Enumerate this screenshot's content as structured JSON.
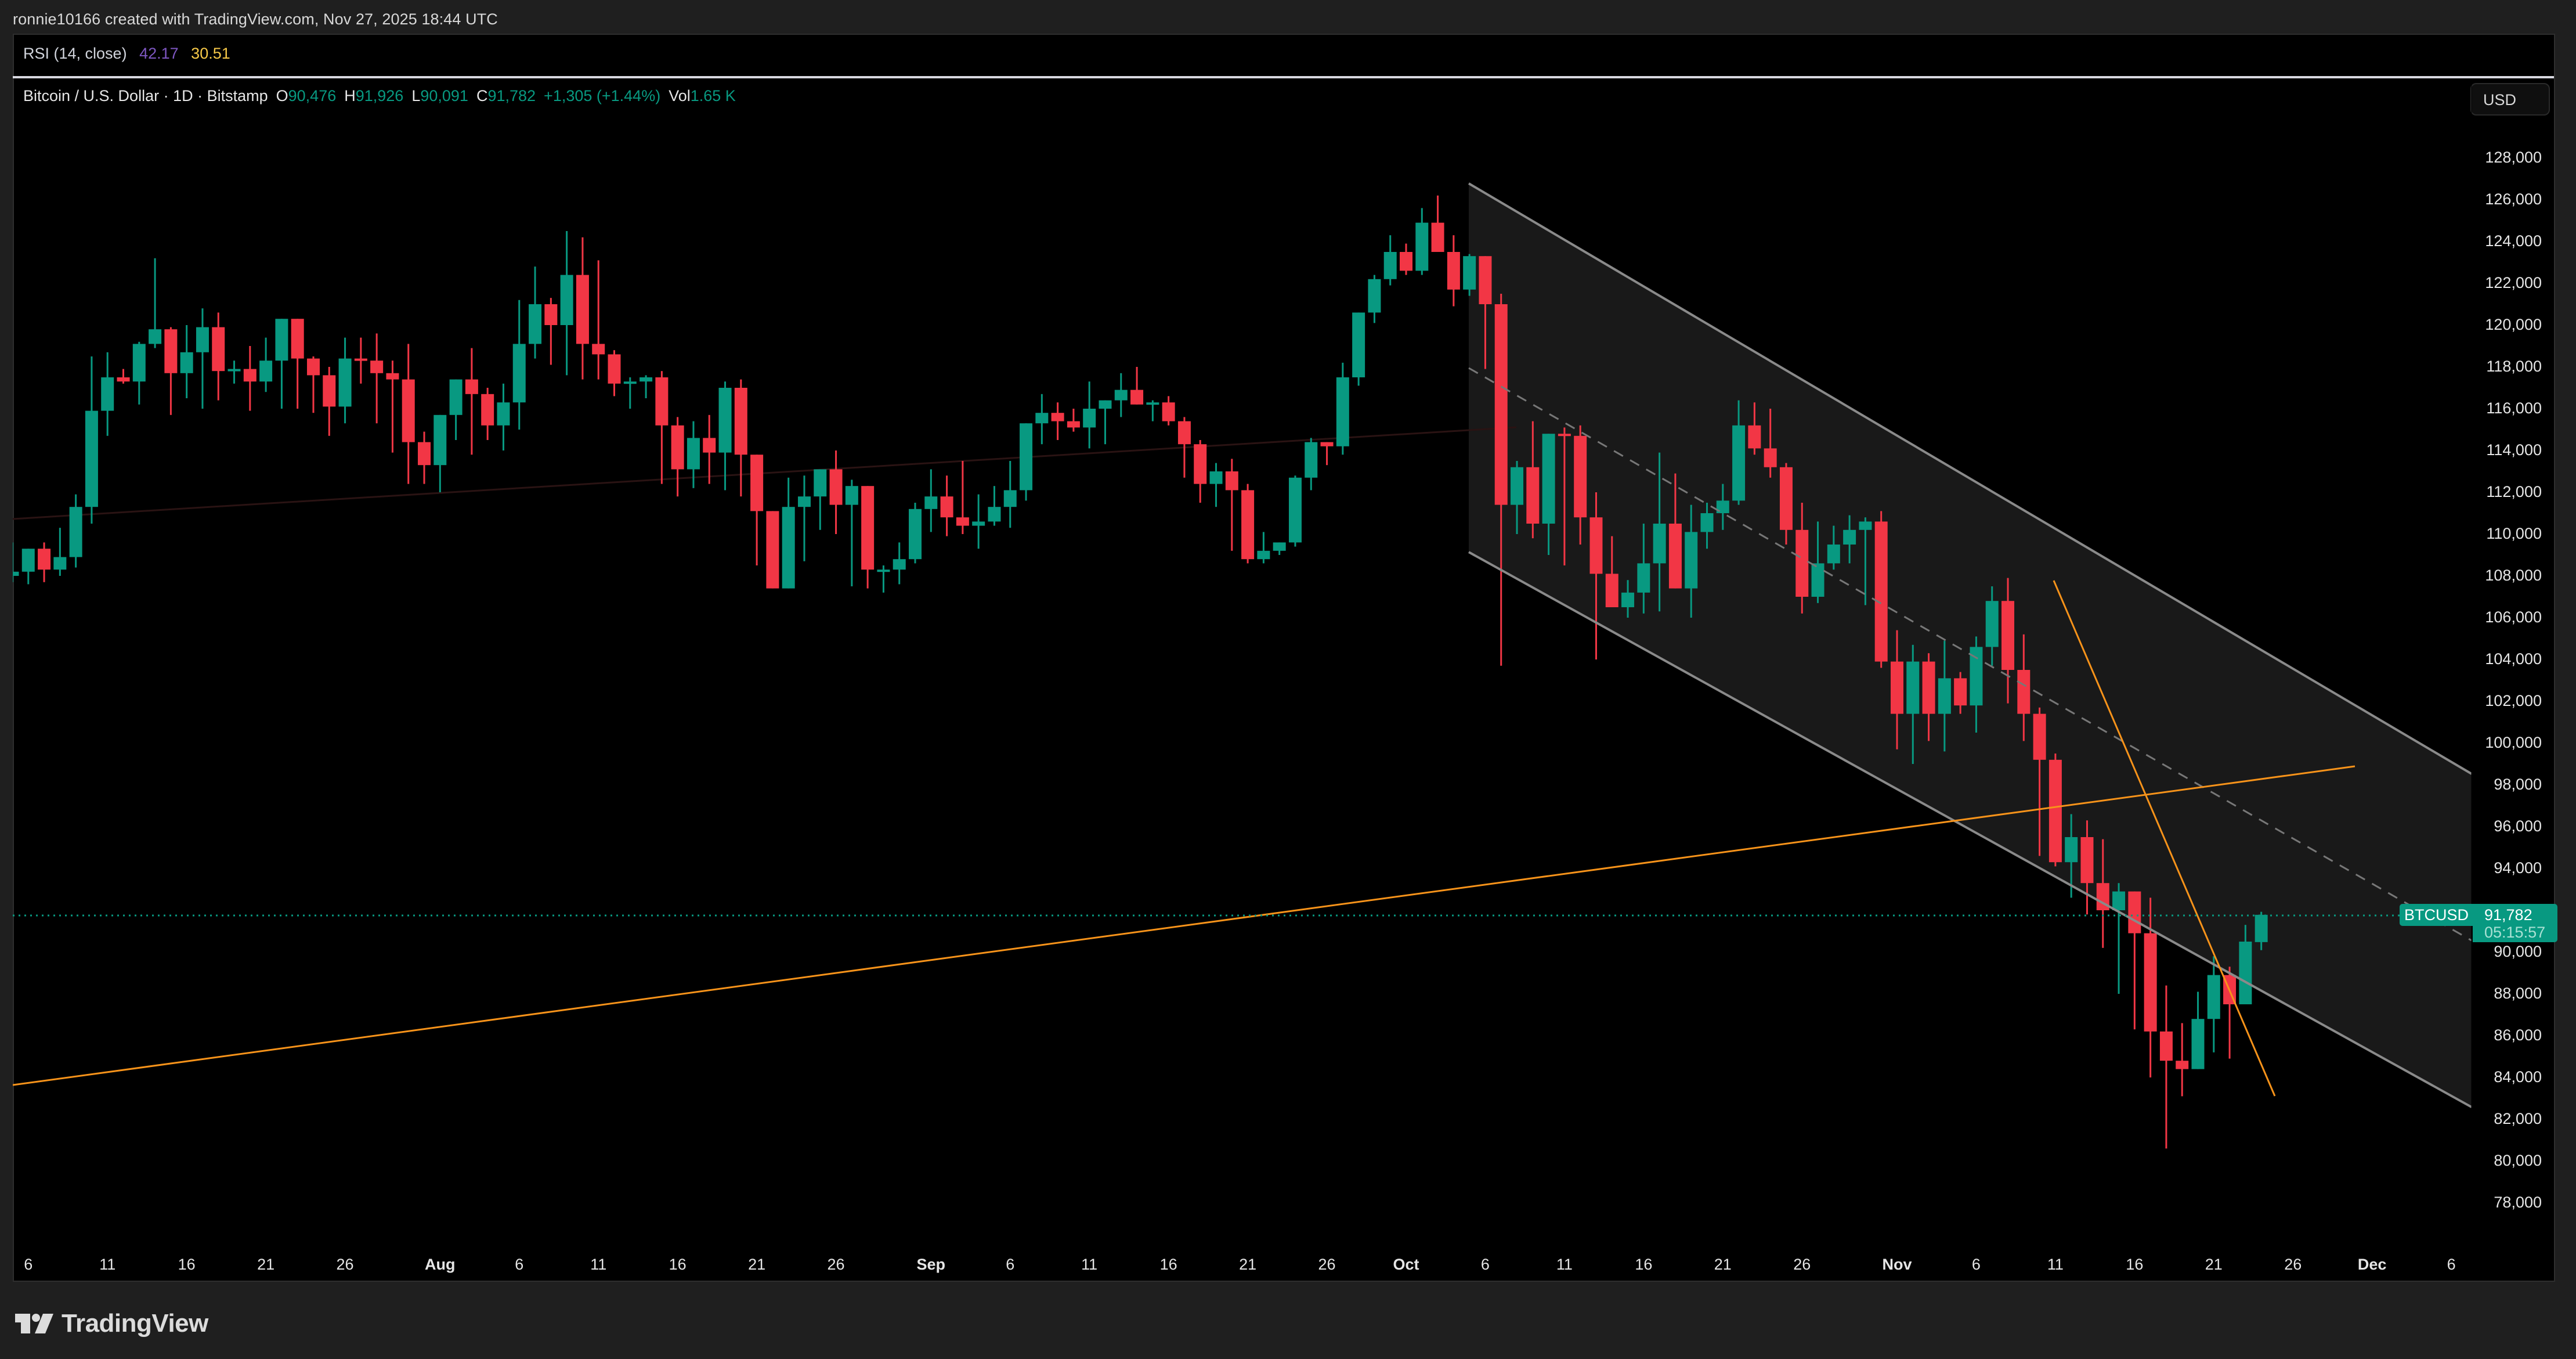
{
  "header": {
    "credit": "ronnie10166 created with TradingView.com, Nov 27, 2025 18:44 UTC"
  },
  "rsi": {
    "label": "RSI (14, close)",
    "value1": "42.17",
    "value2": "30.51",
    "color1": "#7e57c2",
    "color2": "#f7c948"
  },
  "legend": {
    "symbol": "Bitcoin / U.S. Dollar · 1D · Bitstamp",
    "o_label": "O",
    "o": "90,476",
    "h_label": "H",
    "h": "91,926",
    "l_label": "L",
    "l": "90,091",
    "c_label": "C",
    "c": "91,782",
    "change": "+1,305 (+1.44%)",
    "vol_label": "Vol",
    "vol": "1.65 K"
  },
  "currency_button": "USD",
  "last_price": {
    "symbol": "BTCUSD",
    "price": "91,782",
    "countdown": "05:15:57"
  },
  "footer": {
    "brand": "TradingView"
  },
  "colors": {
    "up": "#089981",
    "down": "#f23645",
    "channel_line": "#8a8a8a",
    "channel_fill": "#191919",
    "trendline": "#f7931a",
    "faint_line": "#2a1313"
  },
  "chart_data": {
    "type": "candlestick",
    "title": "Bitcoin / U.S. Dollar · 1D · Bitstamp",
    "xlabel": "",
    "ylabel": "USD",
    "ylim": [
      77000,
      130000
    ],
    "y_ticks": [
      "128,000",
      "126,000",
      "124,000",
      "122,000",
      "120,000",
      "118,000",
      "116,000",
      "114,000",
      "112,000",
      "110,000",
      "108,000",
      "106,000",
      "104,000",
      "102,000",
      "100,000",
      "98,000",
      "96,000",
      "94,000",
      "92,000",
      "90,000",
      "88,000",
      "86,000",
      "84,000",
      "82,000",
      "80,000",
      "78,000"
    ],
    "x_ticks": [
      {
        "label": "6",
        "day": -87,
        "month": false
      },
      {
        "label": "11",
        "day": -82,
        "month": false
      },
      {
        "label": "16",
        "day": -77,
        "month": false
      },
      {
        "label": "21",
        "day": -72,
        "month": false
      },
      {
        "label": "26",
        "day": -67,
        "month": false
      },
      {
        "label": "Aug",
        "day": -61,
        "month": true
      },
      {
        "label": "6",
        "day": -56,
        "month": false
      },
      {
        "label": "11",
        "day": -51,
        "month": false
      },
      {
        "label": "16",
        "day": -46,
        "month": false
      },
      {
        "label": "21",
        "day": -41,
        "month": false
      },
      {
        "label": "26",
        "day": -36,
        "month": false
      },
      {
        "label": "Sep",
        "day": -30,
        "month": true
      },
      {
        "label": "6",
        "day": -25,
        "month": false
      },
      {
        "label": "11",
        "day": -20,
        "month": false
      },
      {
        "label": "16",
        "day": -15,
        "month": false
      },
      {
        "label": "21",
        "day": -10,
        "month": false
      },
      {
        "label": "26",
        "day": -5,
        "month": false
      },
      {
        "label": "Oct",
        "day": 0,
        "month": true
      },
      {
        "label": "6",
        "day": 5,
        "month": false
      },
      {
        "label": "11",
        "day": 10,
        "month": false
      },
      {
        "label": "16",
        "day": 15,
        "month": false
      },
      {
        "label": "21",
        "day": 20,
        "month": false
      },
      {
        "label": "26",
        "day": 25,
        "month": false
      },
      {
        "label": "Nov",
        "day": 31,
        "month": true
      },
      {
        "label": "6",
        "day": 36,
        "month": false
      },
      {
        "label": "11",
        "day": 41,
        "month": false
      },
      {
        "label": "16",
        "day": 46,
        "month": false
      },
      {
        "label": "21",
        "day": 51,
        "month": false
      },
      {
        "label": "26",
        "day": 56,
        "month": false
      },
      {
        "label": "Dec",
        "day": 61,
        "month": true
      },
      {
        "label": "6",
        "day": 66,
        "month": false
      }
    ],
    "candles_note": "OHLC per day, first candle = Jul 3 (day offset -90 from Oct 1), last = Nov 27; values estimated from pixels",
    "start_day": -90,
    "candles": [
      [
        108800,
        109700,
        107400,
        109300
      ],
      [
        109300,
        110600,
        107200,
        108000
      ],
      [
        108000,
        109600,
        107700,
        108200
      ],
      [
        108200,
        109200,
        107600,
        109300
      ],
      [
        109300,
        109600,
        107700,
        108300
      ],
      [
        108300,
        110300,
        108000,
        108900
      ],
      [
        108900,
        111900,
        108400,
        111300
      ],
      [
        111300,
        118500,
        110500,
        115900
      ],
      [
        115900,
        118700,
        114700,
        117500
      ],
      [
        117500,
        117900,
        117200,
        117300
      ],
      [
        117300,
        119200,
        116200,
        119100
      ],
      [
        119100,
        123200,
        118900,
        119800
      ],
      [
        119800,
        119900,
        115700,
        117700
      ],
      [
        117700,
        120000,
        116500,
        118700
      ],
      [
        118700,
        120800,
        116000,
        119900
      ],
      [
        119900,
        120600,
        116400,
        117800
      ],
      [
        117800,
        118300,
        117200,
        117900
      ],
      [
        117900,
        119000,
        115900,
        117300
      ],
      [
        117300,
        119400,
        116800,
        118300
      ],
      [
        118300,
        120300,
        116000,
        120300
      ],
      [
        120300,
        120000,
        116000,
        118400
      ],
      [
        118400,
        118500,
        115800,
        117600
      ],
      [
        117600,
        118000,
        114700,
        116100
      ],
      [
        116100,
        119400,
        115300,
        118400
      ],
      [
        118400,
        119400,
        117200,
        118300
      ],
      [
        118300,
        119600,
        115300,
        117700
      ],
      [
        117700,
        118300,
        113900,
        117400
      ],
      [
        117400,
        119100,
        112400,
        114400
      ],
      [
        114400,
        114900,
        112400,
        113300
      ],
      [
        113300,
        114500,
        112000,
        115700
      ],
      [
        115700,
        117200,
        114500,
        117400
      ],
      [
        117400,
        118900,
        113800,
        116700
      ],
      [
        116700,
        117000,
        114500,
        115200
      ],
      [
        115200,
        117200,
        114000,
        116300
      ],
      [
        116300,
        121200,
        115000,
        119100
      ],
      [
        119100,
        122800,
        118400,
        121000
      ],
      [
        121000,
        121300,
        118100,
        120000
      ],
      [
        120000,
        124500,
        117600,
        122400
      ],
      [
        122400,
        124200,
        117400,
        119100
      ],
      [
        119100,
        123100,
        117400,
        118600
      ],
      [
        118600,
        118800,
        116600,
        117200
      ],
      [
        117200,
        117500,
        116000,
        117300
      ],
      [
        117300,
        117600,
        116500,
        117500
      ],
      [
        117500,
        117800,
        112400,
        115200
      ],
      [
        115200,
        115600,
        111800,
        113100
      ],
      [
        113100,
        115400,
        112200,
        114600
      ],
      [
        114600,
        115700,
        112400,
        113900
      ],
      [
        113900,
        117300,
        112100,
        117000
      ],
      [
        117000,
        117400,
        111800,
        113800
      ],
      [
        113800,
        113700,
        108500,
        111100
      ],
      [
        111100,
        110400,
        107800,
        107400
      ],
      [
        107400,
        112700,
        107700,
        111300
      ],
      [
        111300,
        112800,
        108700,
        111800
      ],
      [
        111800,
        113100,
        110200,
        113100
      ],
      [
        113100,
        114000,
        110000,
        111400
      ],
      [
        111400,
        112600,
        107500,
        112300
      ],
      [
        112300,
        112300,
        107400,
        108300
      ],
      [
        108300,
        108500,
        107200,
        108300
      ],
      [
        108300,
        109600,
        107600,
        108800
      ],
      [
        108800,
        111500,
        108600,
        111200
      ],
      [
        111200,
        113100,
        110100,
        111800
      ],
      [
        111800,
        112800,
        109900,
        110800
      ],
      [
        110800,
        113500,
        110000,
        110400
      ],
      [
        110400,
        111900,
        109300,
        110600
      ],
      [
        110600,
        112300,
        110400,
        111300
      ],
      [
        111300,
        113500,
        110300,
        112100
      ],
      [
        112100,
        114300,
        111600,
        115300
      ],
      [
        115300,
        116700,
        114300,
        115800
      ],
      [
        115800,
        116300,
        114500,
        115400
      ],
      [
        115400,
        116000,
        114900,
        115100
      ],
      [
        115100,
        117300,
        114100,
        116000
      ],
      [
        116000,
        116400,
        114300,
        116400
      ],
      [
        116400,
        117700,
        115600,
        116900
      ],
      [
        116900,
        118000,
        116200,
        116200
      ],
      [
        116200,
        116400,
        115400,
        116300
      ],
      [
        116300,
        116600,
        115200,
        115400
      ],
      [
        115400,
        115600,
        112700,
        114300
      ],
      [
        114300,
        114500,
        111500,
        112400
      ],
      [
        112400,
        113400,
        111300,
        113000
      ],
      [
        113000,
        113600,
        109200,
        112100
      ],
      [
        112100,
        112400,
        108600,
        108800
      ],
      [
        108800,
        110100,
        108600,
        109200
      ],
      [
        109200,
        109500,
        109000,
        109600
      ],
      [
        109600,
        112800,
        109400,
        112700
      ],
      [
        112700,
        114600,
        112100,
        114400
      ],
      [
        114400,
        114200,
        113300,
        114200
      ],
      [
        114200,
        118200,
        113800,
        117500
      ],
      [
        117500,
        120300,
        117100,
        120600
      ],
      [
        120600,
        122400,
        120100,
        122200
      ],
      [
        122200,
        124300,
        121900,
        123500
      ],
      [
        123500,
        123900,
        122400,
        122600
      ],
      [
        122600,
        125600,
        122400,
        124900
      ],
      [
        124900,
        126200,
        123500,
        123500
      ],
      [
        123500,
        124300,
        120900,
        121700
      ],
      [
        121700,
        123400,
        121400,
        123300
      ],
      [
        123300,
        122500,
        117900,
        121000
      ],
      [
        121000,
        121500,
        103700,
        111400
      ],
      [
        111400,
        113500,
        110000,
        113200
      ],
      [
        113200,
        115400,
        109800,
        110500
      ],
      [
        110500,
        114800,
        109000,
        114800
      ],
      [
        114800,
        115100,
        108500,
        114700
      ],
      [
        114700,
        115200,
        109500,
        110800
      ],
      [
        110800,
        112000,
        104000,
        108100
      ],
      [
        108100,
        109900,
        107000,
        106500
      ],
      [
        106500,
        107800,
        106000,
        107200
      ],
      [
        107200,
        110500,
        106200,
        108600
      ],
      [
        108600,
        113900,
        106300,
        110500
      ],
      [
        110500,
        112900,
        108800,
        107400
      ],
      [
        107400,
        111400,
        106000,
        110100
      ],
      [
        110100,
        111500,
        109300,
        111000
      ],
      [
        111000,
        112400,
        110200,
        111600
      ],
      [
        111600,
        116400,
        111400,
        115200
      ],
      [
        115200,
        116300,
        113800,
        114100
      ],
      [
        114100,
        116000,
        112700,
        113200
      ],
      [
        113200,
        113400,
        109500,
        110200
      ],
      [
        110200,
        111500,
        106200,
        107000
      ],
      [
        107000,
        110600,
        106700,
        108600
      ],
      [
        108600,
        110400,
        108300,
        109500
      ],
      [
        109500,
        110900,
        108600,
        110200
      ],
      [
        110200,
        110800,
        106600,
        110600
      ],
      [
        110600,
        111100,
        103600,
        103900
      ],
      [
        103900,
        105400,
        99700,
        101400
      ],
      [
        101400,
        104700,
        99000,
        103900
      ],
      [
        103900,
        104300,
        100100,
        101400
      ],
      [
        101400,
        104900,
        99600,
        103100
      ],
      [
        103100,
        103400,
        101400,
        101800
      ],
      [
        101800,
        105100,
        100500,
        104600
      ],
      [
        104600,
        107500,
        103700,
        106800
      ],
      [
        106800,
        107900,
        101900,
        103500
      ],
      [
        103500,
        105200,
        100100,
        101400
      ],
      [
        101400,
        101700,
        94600,
        99200
      ],
      [
        99200,
        99500,
        94100,
        94300
      ],
      [
        94300,
        96600,
        92600,
        95500
      ],
      [
        95500,
        96300,
        91800,
        93300
      ],
      [
        93300,
        95400,
        90200,
        92000
      ],
      [
        92000,
        93300,
        88000,
        92900
      ],
      [
        92900,
        92800,
        86300,
        90900
      ],
      [
        90900,
        92600,
        84000,
        86200
      ],
      [
        86200,
        88400,
        80600,
        84800
      ],
      [
        84800,
        86600,
        83100,
        84400
      ],
      [
        84400,
        88100,
        84600,
        86800
      ],
      [
        86800,
        89800,
        85200,
        88900
      ],
      [
        88900,
        89300,
        84900,
        87500
      ],
      [
        87500,
        91300,
        87800,
        90500
      ],
      [
        90476,
        91926,
        90091,
        91782
      ]
    ]
  }
}
